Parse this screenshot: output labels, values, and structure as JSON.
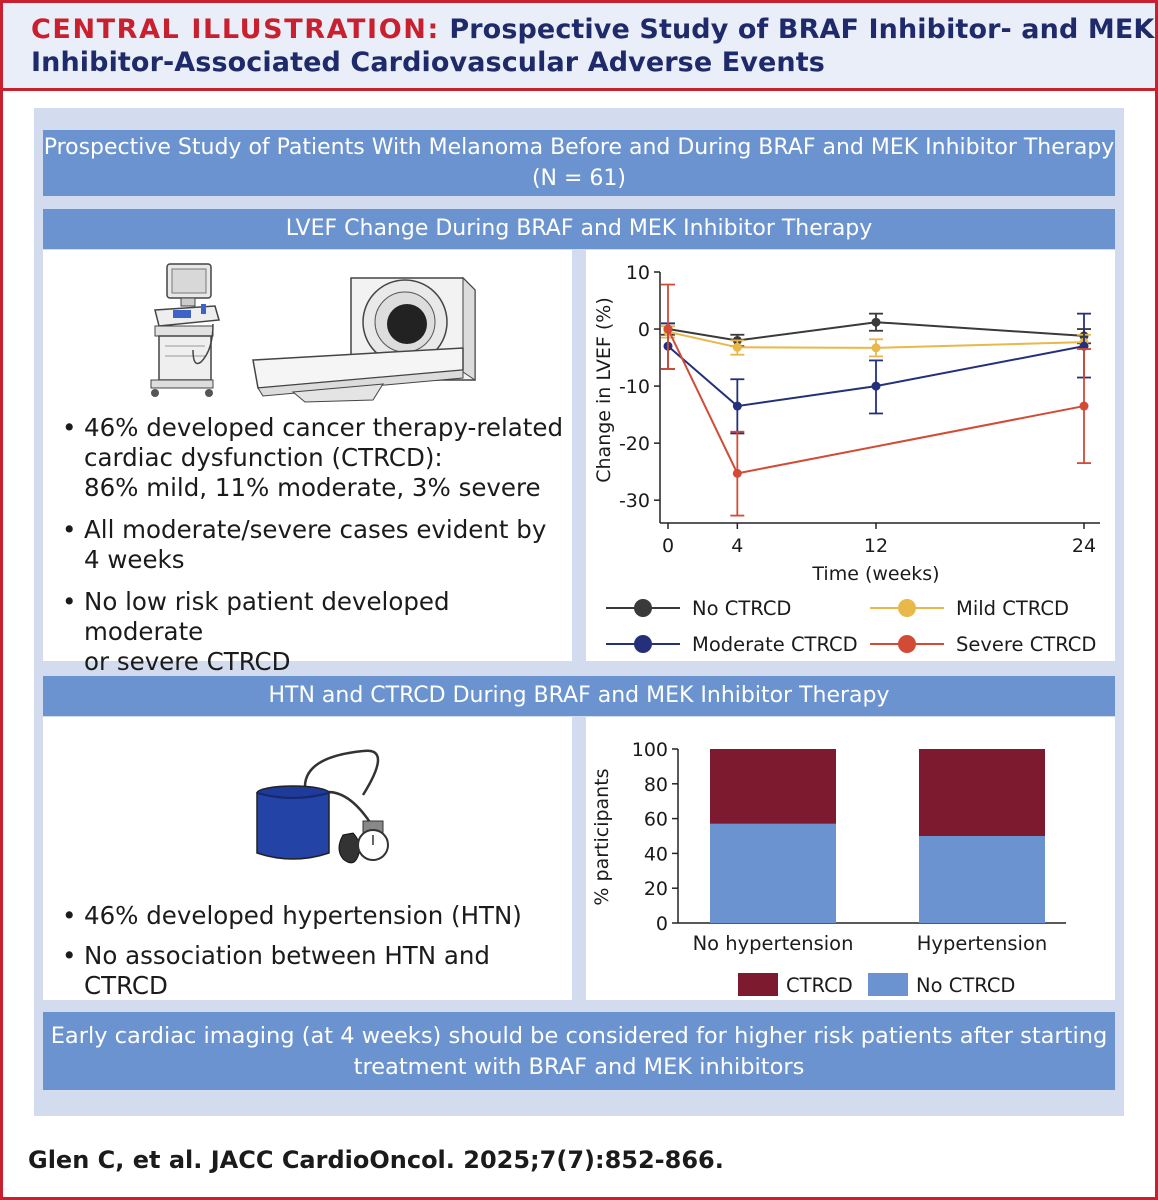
{
  "header": {
    "tag": "CENTRAL ILLUSTRATION:",
    "title_line1": "Prospective Study of BRAF Inhibitor- and MEK",
    "title_line2": "Inhibitor-Associated Cardiovascular Adverse Events"
  },
  "study_banner": {
    "line1": "Prospective Study of Patients With Melanoma Before and During BRAF and MEK Inhibitor Therapy",
    "line2": "(N = 61)"
  },
  "lvef_section": {
    "title": "LVEF Change During BRAF and MEK Inhibitor Therapy",
    "bullets": [
      {
        "l1": "46% developed cancer therapy-related",
        "l2": "cardiac dysfunction (CTRCD):",
        "l3": "86% mild, 11% moderate, 3% severe"
      },
      {
        "l1": "All moderate/severe cases evident by",
        "l2": "4 weeks"
      },
      {
        "l1": "No low risk patient developed moderate",
        "l2": "or severe CTRCD"
      }
    ]
  },
  "htn_section": {
    "title": "HTN and CTRCD During BRAF and MEK Inhibitor Therapy",
    "bullets": [
      "46% developed hypertension (HTN)",
      "No association between HTN and CTRCD"
    ]
  },
  "conclusion": {
    "line1": "Early cardiac imaging (at 4 weeks) should be considered for higher risk patients after starting",
    "line2": "treatment with BRAF and MEK inhibitors"
  },
  "citation": "Glen C, et al. JACC CardioOncol. 2025;7(7):852-866.",
  "chart_data": [
    {
      "type": "line",
      "title": "",
      "xlabel": "Time (weeks)",
      "ylabel": "Change in LVEF (%)",
      "x": [
        0,
        4,
        12,
        24
      ],
      "xticks": [
        "0",
        "4",
        "12",
        "24"
      ],
      "yticks": [
        "10",
        "0",
        "-10",
        "-20",
        "-30"
      ],
      "xlim": [
        0,
        24
      ],
      "ylim": [
        -34,
        10
      ],
      "legend": "bottom",
      "series": [
        {
          "name": "No CTRCD",
          "color": "#3a3a3a",
          "values": [
            0,
            -2,
            1.2,
            -1.2
          ],
          "err_low": [
            -1,
            -3,
            -0.3,
            -2.5
          ],
          "err_high": [
            1,
            -1,
            2.7,
            0
          ]
        },
        {
          "name": "Mild CTRCD",
          "color": "#e8b84a",
          "values": [
            -0.5,
            -3.2,
            -3.3,
            -2.3
          ],
          "err_low": [
            -1.5,
            -4.5,
            -4.8,
            -3.5
          ],
          "err_high": [
            0.5,
            -2,
            -1.8,
            -1
          ]
        },
        {
          "name": "Moderate CTRCD",
          "color": "#24307a",
          "values": [
            -3,
            -13.5,
            -10,
            -3
          ],
          "err_low": [
            -7,
            -18.3,
            -14.8,
            -8.5
          ],
          "err_high": [
            1,
            -8.8,
            -5.5,
            2.7
          ]
        },
        {
          "name": "Severe CTRCD",
          "color": "#d24b35",
          "values": [
            0,
            -25.3,
            -13.5
          ],
          "x": [
            0,
            4,
            24
          ],
          "err_low": [
            -7,
            -32.7,
            -23.5
          ],
          "err_high": [
            7.8,
            -18,
            -3.5
          ]
        }
      ]
    },
    {
      "type": "bar",
      "title": "",
      "xlabel": "",
      "ylabel": "% participants",
      "categories": [
        "No hypertension",
        "Hypertension"
      ],
      "yticks": [
        "100",
        "80",
        "60",
        "40",
        "20",
        "0"
      ],
      "ylim": [
        0,
        100
      ],
      "stacked": true,
      "legend": "bottom",
      "series": [
        {
          "name": "No CTRCD",
          "color": "#6b93cf",
          "values": [
            57,
            50
          ]
        },
        {
          "name": "CTRCD",
          "color": "#7e1a30",
          "values": [
            43,
            50
          ]
        }
      ]
    }
  ]
}
